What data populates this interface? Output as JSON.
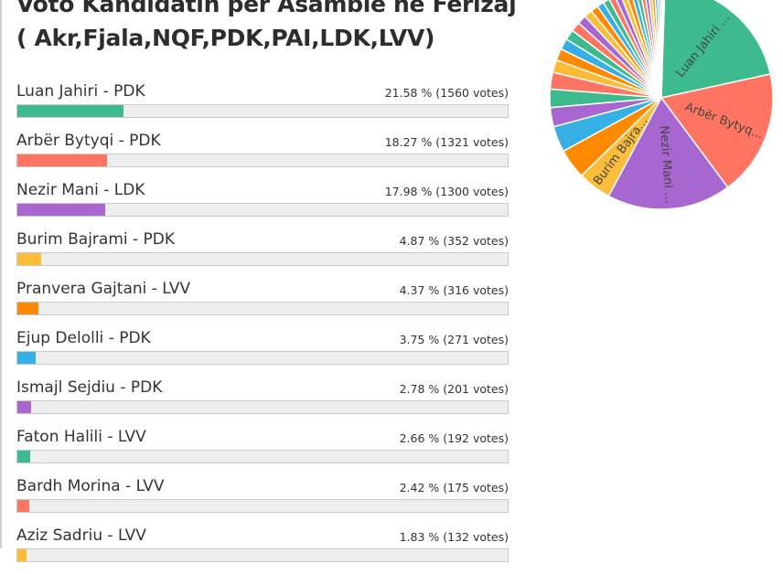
{
  "poll": {
    "title": "Voto Kandidatin per Asamble ne Ferizaj ( Akr,Fjala,NQF,PDK,PAI,LDK,LVV)"
  },
  "candidates": [
    {
      "name": "Luan Jahiri - PDK",
      "percent": 21.58,
      "stats": "21.58 % (1560 votes)",
      "color": "#3dba8e",
      "pie_label": "Luan Jahiri ..."
    },
    {
      "name": "Arbër Bytyqi - PDK",
      "percent": 18.27,
      "stats": "18.27 % (1321 votes)",
      "color": "#ff7562",
      "pie_label": "Arbër Bytyq..."
    },
    {
      "name": "Nezir Mani - LDK",
      "percent": 17.98,
      "stats": "17.98 % (1300 votes)",
      "color": "#a866d1",
      "pie_label": "Nezir Mani ..."
    },
    {
      "name": "Burim Bajrami - PDK",
      "percent": 4.87,
      "stats": "4.87 % (352 votes)",
      "color": "#fbbd3a",
      "pie_label": "Burim Bajra..."
    },
    {
      "name": "Pranvera Gajtani - LVV",
      "percent": 4.37,
      "stats": "4.37 % (316 votes)",
      "color": "#ff8a00",
      "pie_label": ""
    },
    {
      "name": "Ejup Delolli - PDK",
      "percent": 3.75,
      "stats": "3.75 % (271 votes)",
      "color": "#35b0e4",
      "pie_label": ""
    },
    {
      "name": "Ismajl Sejdiu - PDK",
      "percent": 2.78,
      "stats": "2.78 % (201 votes)",
      "color": "#a866d1",
      "pie_label": ""
    },
    {
      "name": "Faton Halili - LVV",
      "percent": 2.66,
      "stats": "2.66 % (192 votes)",
      "color": "#3dba8e",
      "pie_label": ""
    },
    {
      "name": "Bardh Morina - LVV",
      "percent": 2.42,
      "stats": "2.42 % (175 votes)",
      "color": "#ff7562",
      "pie_label": ""
    },
    {
      "name": "Aziz Sadriu - LVV",
      "percent": 1.83,
      "stats": "1.83 % (132 votes)",
      "color": "#ffbb36",
      "pie_label": ""
    }
  ],
  "pie_remaining_slices": [
    1.7,
    1.6,
    1.5,
    1.4,
    1.3,
    1.2,
    1.1,
    1.0,
    0.95,
    0.9,
    0.85,
    0.8,
    0.75,
    0.7,
    0.65,
    0.6,
    0.55,
    0.5,
    0.45,
    0.4,
    0.35,
    0.3,
    0.25,
    0.2
  ],
  "palette": [
    "#3dba8e",
    "#ff7562",
    "#a866d1",
    "#fbbd3a",
    "#ff8a00",
    "#35b0e4"
  ]
}
